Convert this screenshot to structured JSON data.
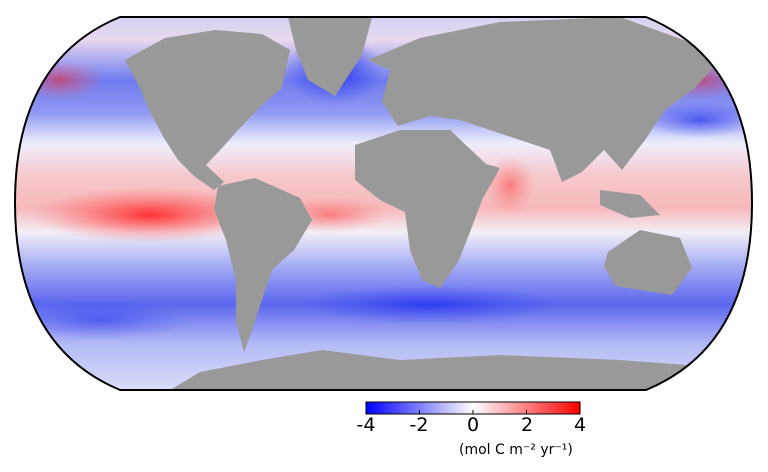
{
  "map": {
    "projection": "Robinson",
    "land_color": "#999999",
    "ocean_colormap": [
      "#0000ff",
      "#ffffff",
      "#ff0000"
    ]
  },
  "colorbar": {
    "min": -4,
    "max": 4,
    "ticks": [
      "-4",
      "-2",
      "0",
      "2",
      "4"
    ],
    "unit_label": "(mol C m⁻² yr⁻¹)"
  }
}
